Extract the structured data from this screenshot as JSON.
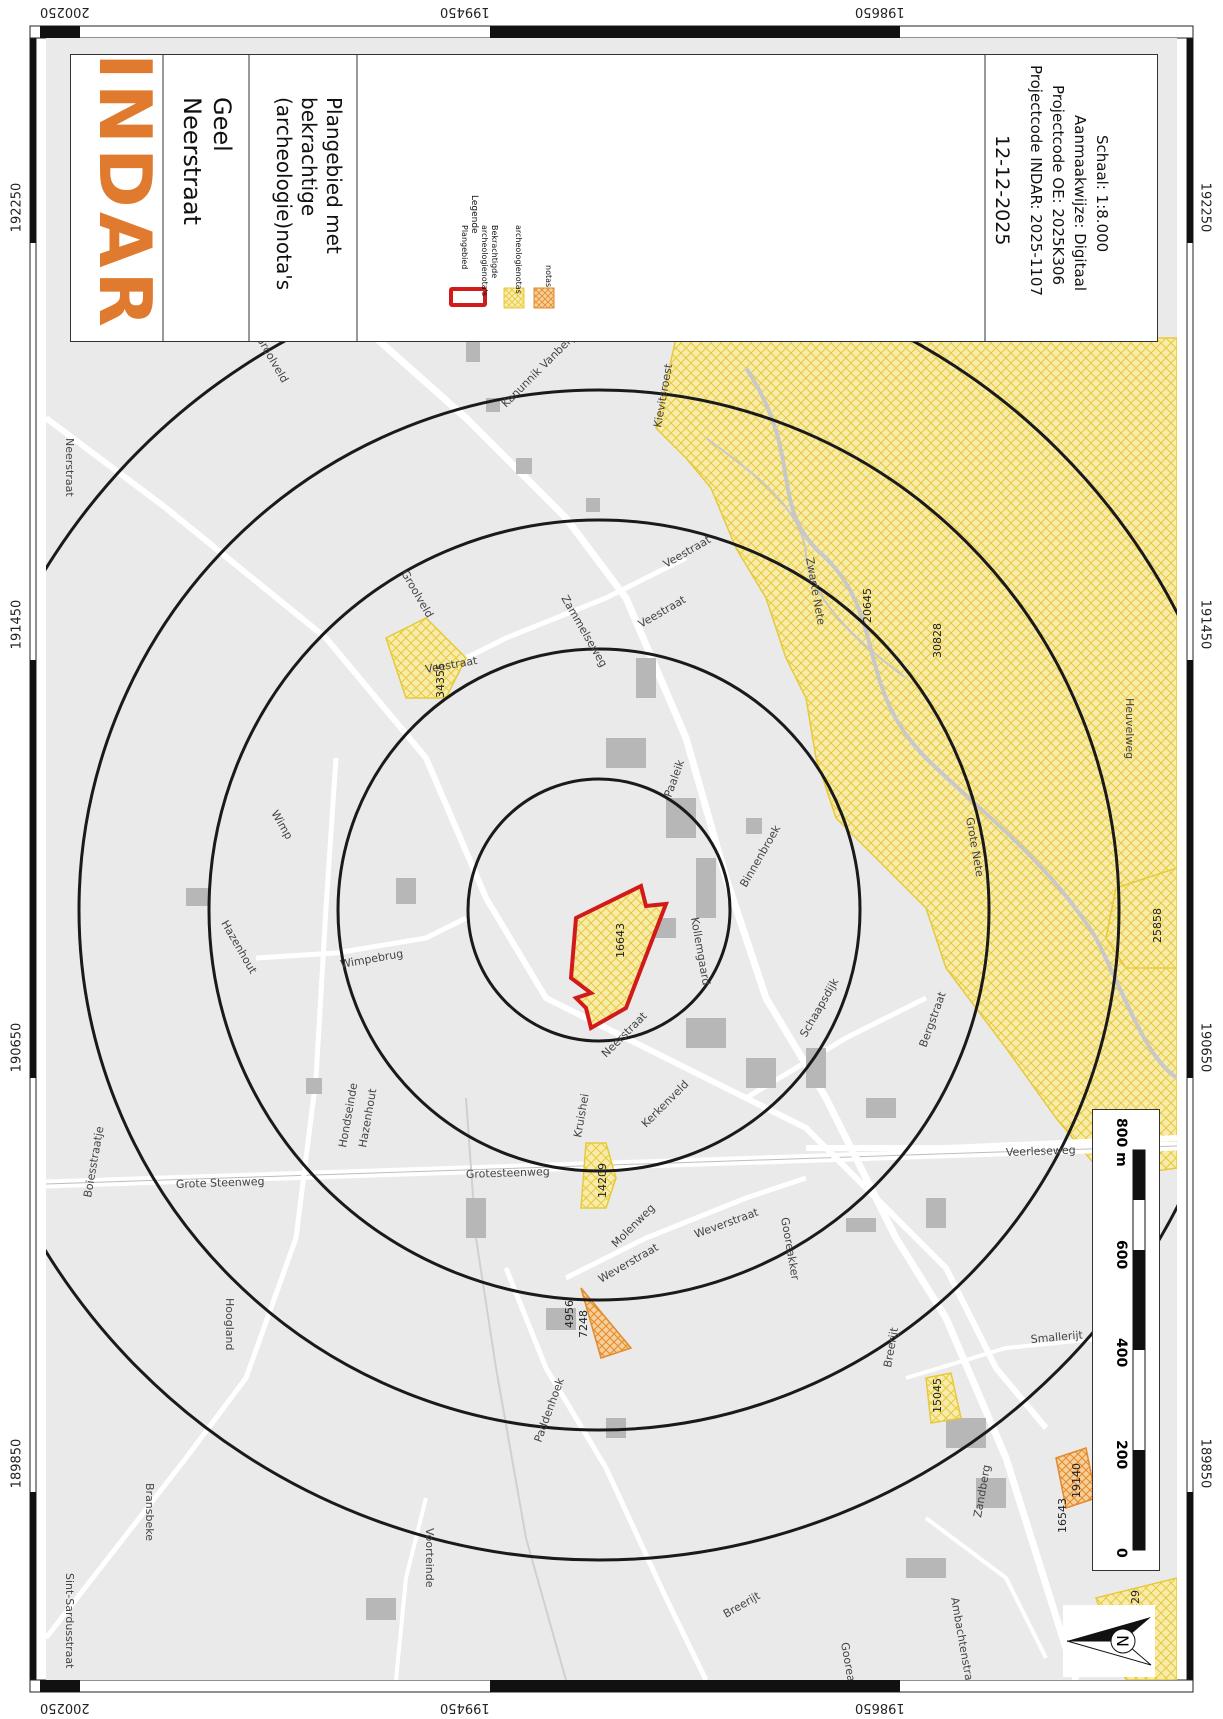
{
  "coords": {
    "top": [
      "200250",
      "199450",
      "198650"
    ],
    "bottom": [
      "200250",
      "199450",
      "198650"
    ],
    "left": [
      "192250",
      "191450",
      "190650",
      "189850"
    ],
    "right": [
      "192250",
      "191450",
      "190650",
      "189850"
    ]
  },
  "title": {
    "logo": "INDAR",
    "municipality": "Geel",
    "street": "Neerstraat",
    "map_title_1": "Plangebied met",
    "map_title_2": "bekrachtige",
    "map_title_3": "(archeologie)nota's"
  },
  "legend": {
    "heading": "Legende",
    "plangebied": "Plangebied",
    "bekrachtigde_1": "Bekrachtigde",
    "bekrachtigde_2": "archeologienota's",
    "archeologienotas": "archeologienotas",
    "notas": "notas"
  },
  "info": {
    "scale": "Schaal:   1:8.000",
    "method": "Aanmaakwijze:   Digitaal",
    "project_oe": "Projectcode OE:  2025K306",
    "project_indar": "Projectcode INDAR: 2025-1107",
    "date": "12-12-2025"
  },
  "scalebar": {
    "labels": [
      "0",
      "200",
      "400",
      "600",
      "800 m"
    ]
  },
  "ids": [
    "16643",
    "34355",
    "20645",
    "30828",
    "25858",
    "14209",
    "4956",
    "7248",
    "15045",
    "16543",
    "19140",
    "3429"
  ],
  "streets": [
    "Neerstraat",
    "Groolveld",
    "Groolveld",
    "Kanunnik Vanbergestraat",
    "Zammelseweg",
    "Veestraat",
    "Veestraat",
    "Veestraat",
    "Paaleik",
    "Wimp",
    "Hazenhout",
    "Wimpebrug",
    "Binnenbroek",
    "Kollemgaard",
    "Neerstraat",
    "Schaapsdijk",
    "Bergstraat",
    "Kerkenveld",
    "Kruishei",
    "Hondseinde",
    "Hazenhout",
    "Boiesstraatje",
    "Grote Steenweg",
    "Grotesteenweg",
    "Veerleseweg",
    "Hoogland",
    "Voorteinde",
    "Weverstraat",
    "Weverstraat",
    "Molenweg",
    "Gooreakker",
    "Breerijt",
    "Smallerijt",
    "Zandberg",
    "Bransbeke",
    "Sint-Sardusstraat",
    "Paddenhoek",
    "Ambachtenstraat",
    "Breerijt",
    "Gooreakker",
    "Grote Nete",
    "Zwarte Nete",
    "Kievitsroest",
    "Heuvelweg",
    "Hoeveveld"
  ]
}
